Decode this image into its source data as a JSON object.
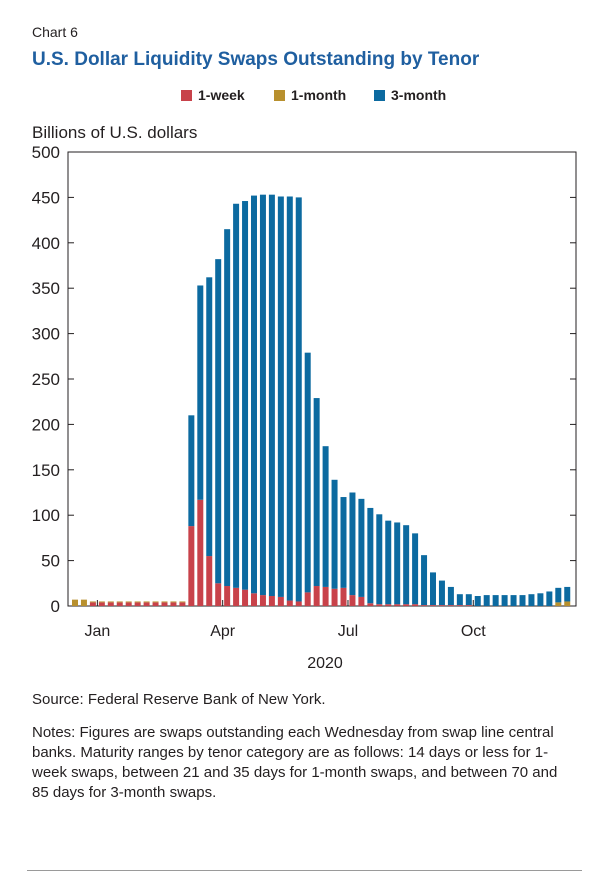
{
  "header": {
    "chart_label": "Chart 6",
    "title": "U.S. Dollar Liquidity Swaps Outstanding by Tenor"
  },
  "colors": {
    "title": "#1f5fa0",
    "one_week": "#c8424a",
    "one_month": "#b8902e",
    "three_month": "#0c6aa0",
    "axis": "#231f20"
  },
  "chart_data": {
    "type": "bar",
    "stacked": true,
    "title": "U.S. Dollar Liquidity Swaps Outstanding by Tenor",
    "ylabel": "Billions of U.S. dollars",
    "xlabel": "2020",
    "ylim": [
      0,
      500
    ],
    "yticks": [
      0,
      50,
      100,
      150,
      200,
      250,
      300,
      350,
      400,
      450,
      500
    ],
    "month_labels": [
      {
        "label": "Jan",
        "index": 2.5
      },
      {
        "label": "Apr",
        "index": 16.5
      },
      {
        "label": "Jul",
        "index": 30.5
      },
      {
        "label": "Oct",
        "index": 44.5
      }
    ],
    "year_label": "2020",
    "legend_position": "top-center",
    "series": [
      {
        "name": "1-week",
        "color": "#c8424a",
        "values": [
          0,
          0,
          4,
          4,
          4,
          4,
          4,
          4,
          4,
          4,
          4,
          4,
          4,
          88,
          117,
          55,
          25,
          22,
          20,
          18,
          14,
          12,
          11,
          10,
          6,
          5,
          15,
          22,
          21,
          19,
          20,
          12,
          10,
          3,
          2,
          2,
          2,
          2,
          2,
          1,
          1,
          1,
          1,
          1,
          1,
          0,
          0,
          0,
          0,
          0,
          0,
          0,
          0,
          0,
          0,
          0
        ]
      },
      {
        "name": "1-month",
        "color": "#b8902e",
        "values": [
          7,
          7,
          1,
          1,
          1,
          1,
          1,
          1,
          1,
          1,
          1,
          1,
          1,
          0,
          0,
          0,
          0,
          0,
          0,
          0,
          0,
          0,
          0,
          0,
          0,
          0,
          0,
          0,
          0,
          0,
          0,
          0,
          0,
          0,
          0,
          0,
          0,
          0,
          0,
          0,
          0,
          0,
          0,
          0,
          0,
          0,
          0,
          0,
          0,
          0,
          0,
          0,
          0,
          0,
          4,
          5
        ]
      },
      {
        "name": "3-month",
        "color": "#0c6aa0",
        "values": [
          0,
          0,
          0,
          0,
          0,
          0,
          0,
          0,
          0,
          0,
          0,
          0,
          0,
          122,
          236,
          307,
          357,
          393,
          423,
          428,
          438,
          441,
          442,
          441,
          445,
          445,
          264,
          207,
          155,
          120,
          100,
          113,
          108,
          105,
          99,
          92,
          90,
          87,
          78,
          55,
          36,
          27,
          20,
          12,
          12,
          11,
          12,
          12,
          12,
          12,
          12,
          13,
          14,
          16,
          16,
          16
        ]
      }
    ]
  },
  "footer": {
    "source": "Source: Federal Reserve Bank of New York.",
    "notes": "Notes: Figures are swaps outstanding each Wednesday from swap line central banks. Maturity ranges by tenor category are as follows: 14 days or less for 1-week swaps, between 21 and 35 days for 1-month swaps, and between 70 and 85 days for 3-month swaps."
  }
}
